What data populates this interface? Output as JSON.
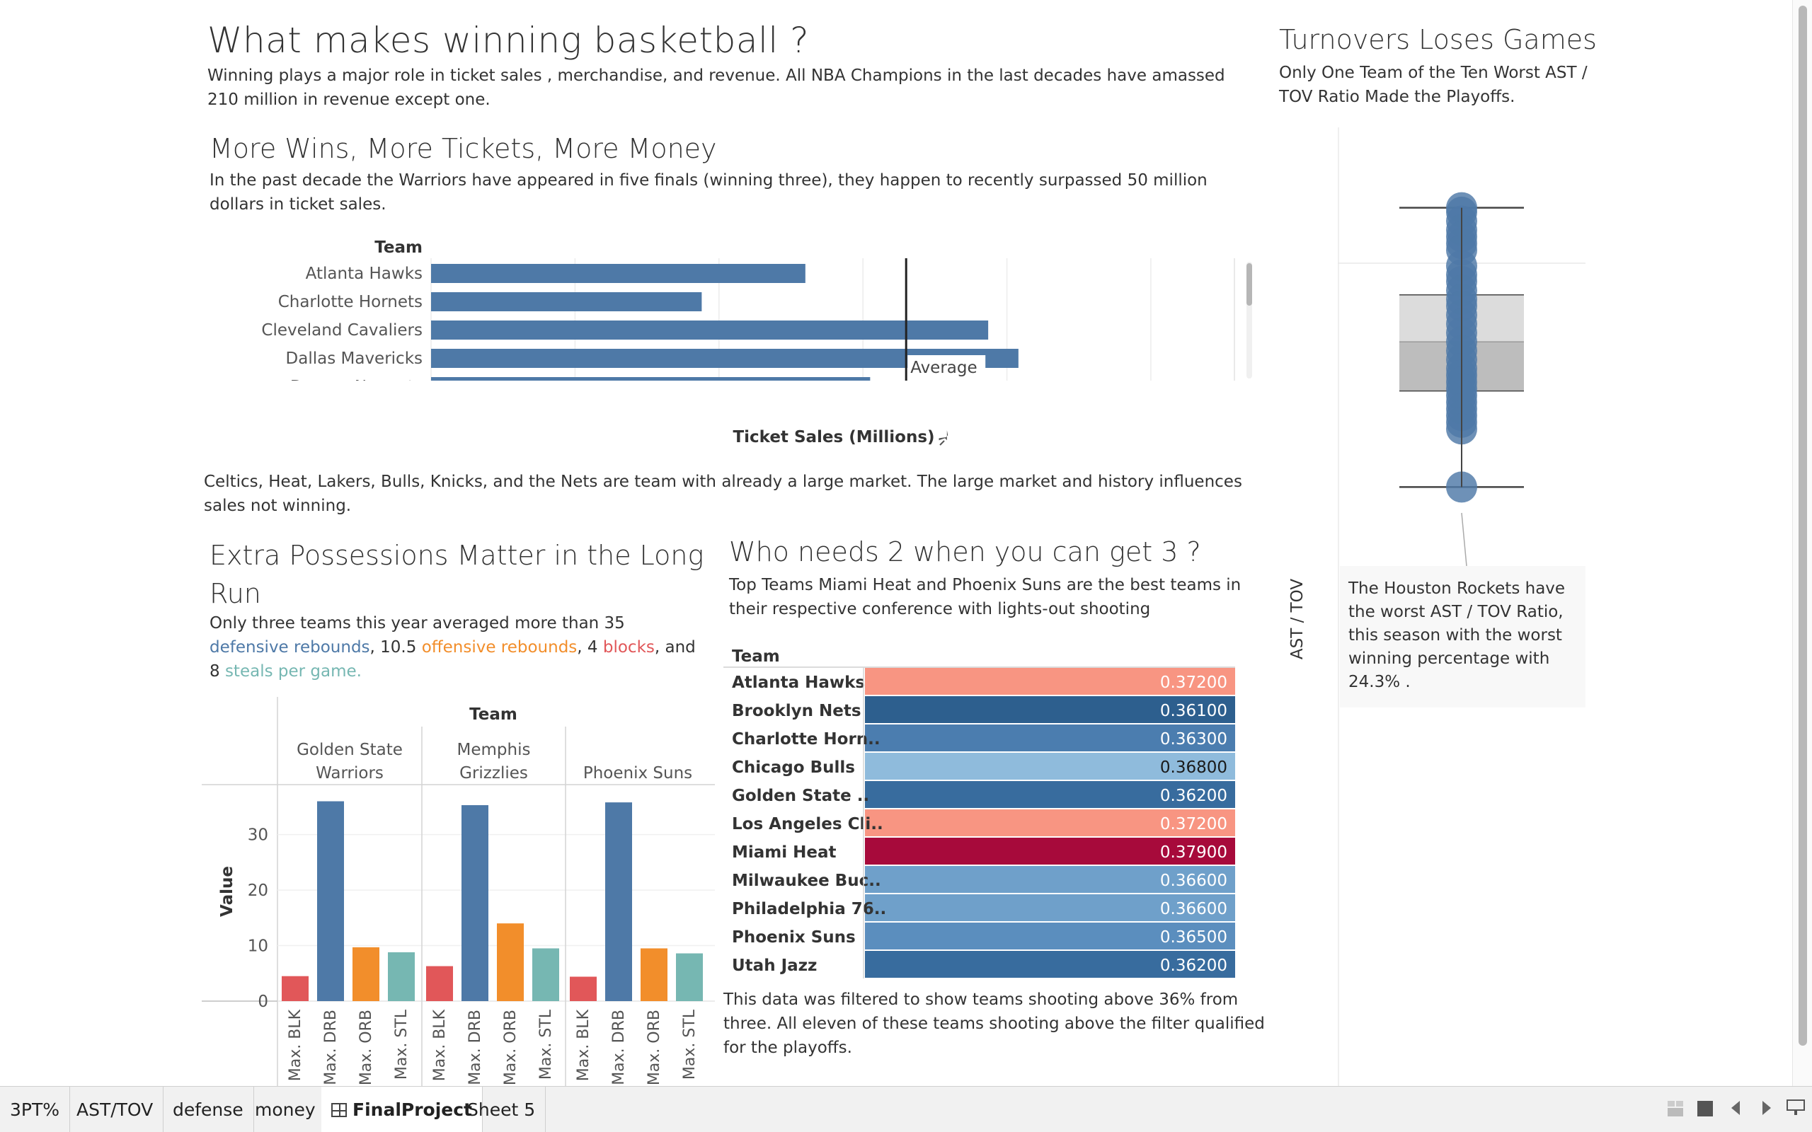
{
  "dashboard": {
    "title": "What makes winning basketball ?",
    "subtitle": "Winning plays a major role in ticket sales , merchandise, and revenue. All NBA Champions in the last decades have amassed 210 million in revenue except one."
  },
  "money_section": {
    "title": "More Wins, More Tickets, More Money",
    "description": "In the past decade the Warriors have appeared in five finals (winning three), they happen to recently surpassed 50 million dollars in ticket sales.",
    "team_header": "Team",
    "axis_title": "Ticket Sales (Millions)",
    "average_label": "Average",
    "footnote": "Celtics, Heat, Lakers, Bulls, Knicks, and the Nets are team with already a large market. The large market and history influences sales not winning."
  },
  "defense_section": {
    "title_line1": "Extra Possessions Matter in the Long",
    "title_line2": "Run",
    "desc_parts": {
      "a": "Only three teams this year averaged more than 35 ",
      "b": "defensive rebounds",
      "c": ", 10.5 ",
      "d": "offensive rebounds",
      "e": ", 4 ",
      "f": "blocks",
      "g": ", and 8 ",
      "h": "steals per game."
    },
    "team_header": "Team",
    "y_axis_title": "Value"
  },
  "threept_section": {
    "title": "Who needs 2 when you can get 3 ?",
    "description": "Top Teams Miami Heat and Phoenix Suns are the best teams in their respective conference with lights-out shooting",
    "team_header": "Team",
    "footnote": "This data was filtered to show teams shooting above 36% from three. All eleven of these teams shooting above the filter qualified for the playoffs."
  },
  "tov_section": {
    "title": "Turnovers Loses Games",
    "description": "Only One Team of the Ten Worst AST / TOV Ratio Made the Playoffs.",
    "y_axis_title": "AST / TOV",
    "annotation": "The Houston Rockets have the worst AST / TOV Ratio, this season with the worst winning percentage with 24.3% ."
  },
  "tabs": [
    {
      "label": "3PT%",
      "active": false
    },
    {
      "label": "AST/TOV",
      "active": false
    },
    {
      "label": "defense",
      "active": false
    },
    {
      "label": "money",
      "active": false
    },
    {
      "label": "FinalProject",
      "active": true
    },
    {
      "label": "Sheet 5",
      "active": false
    }
  ],
  "colors": {
    "bar_blue": "#4e79a7",
    "blk": "#e15759",
    "drb": "#4e79a7",
    "orb": "#f28e2b",
    "stl": "#76b7b2"
  },
  "chart_data": [
    {
      "id": "ticket_sales",
      "type": "bar",
      "orientation": "horizontal",
      "title": "More Wins, More Tickets, More Money",
      "xlabel": "Ticket Sales (Millions)",
      "ylabel": "Team",
      "categories": [
        "Atlanta Hawks",
        "Charlotte Hornets",
        "Cleveland Cavaliers",
        "Dallas Mavericks",
        "Denver Nuggets"
      ],
      "values": [
        26.0,
        18.8,
        38.7,
        40.8,
        30.5
      ],
      "average": 33.0,
      "xlim": [
        0,
        56
      ],
      "grid": true
    },
    {
      "id": "defense_stats",
      "type": "bar",
      "title": "Extra Possessions Matter in the Long Run",
      "ylabel": "Value",
      "measure_labels": [
        "Max. BLK",
        "Max. DRB",
        "Max. ORB",
        "Max. STL"
      ],
      "groups": [
        {
          "name": "Golden State Warriors",
          "line1": "Golden State",
          "line2": "Warriors",
          "values": [
            4.5,
            36.0,
            9.7,
            8.8
          ]
        },
        {
          "name": "Memphis Grizzlies",
          "line1": "Memphis",
          "line2": "Grizzlies",
          "values": [
            6.3,
            35.3,
            14.0,
            9.5
          ]
        },
        {
          "name": "Phoenix Suns",
          "line1": "Phoenix Suns",
          "line2": "",
          "values": [
            4.4,
            35.8,
            9.5,
            8.6
          ]
        }
      ],
      "yticks": [
        0,
        10,
        20,
        30
      ],
      "ylim": [
        0,
        39
      ]
    },
    {
      "id": "three_pt",
      "type": "table",
      "title": "Who needs 2 when you can get 3 ?",
      "header": "Team",
      "rows": [
        {
          "team": "Atlanta Hawks",
          "value": 0.372,
          "label": "0.37200",
          "color": "#f89582",
          "dark_text": false
        },
        {
          "team": "Brooklyn Nets",
          "value": 0.361,
          "label": "0.36100",
          "color": "#2d5f8e",
          "dark_text": false
        },
        {
          "team": "Charlotte Horn..",
          "value": 0.363,
          "label": "0.36300",
          "color": "#4b7daf",
          "dark_text": false
        },
        {
          "team": "Chicago Bulls",
          "value": 0.368,
          "label": "0.36800",
          "color": "#8fbbdc",
          "dark_text": true
        },
        {
          "team": "Golden State ..",
          "value": 0.362,
          "label": "0.36200",
          "color": "#386c9e",
          "dark_text": false
        },
        {
          "team": "Los Angeles Cli..",
          "value": 0.372,
          "label": "0.37200",
          "color": "#f89582",
          "dark_text": false
        },
        {
          "team": "Miami Heat",
          "value": 0.379,
          "label": "0.37900",
          "color": "#a70a3b",
          "dark_text": false
        },
        {
          "team": "Milwaukee Buc..",
          "value": 0.366,
          "label": "0.36600",
          "color": "#6fa0ca",
          "dark_text": false
        },
        {
          "team": "Philadelphia 76..",
          "value": 0.366,
          "label": "0.36600",
          "color": "#6fa0ca",
          "dark_text": false
        },
        {
          "team": "Phoenix Suns",
          "value": 0.365,
          "label": "0.36500",
          "color": "#5b8ebe",
          "dark_text": false
        },
        {
          "team": "Utah Jazz",
          "value": 0.362,
          "label": "0.36200",
          "color": "#386c9e",
          "dark_text": false
        }
      ]
    },
    {
      "id": "ast_tov",
      "type": "scatter",
      "subtype": "box_plot",
      "title": "Turnovers Loses Games",
      "ylabel": "AST / TOV",
      "values": [
        2.3,
        2.28,
        2.24,
        2.2,
        2.17,
        2.14,
        2.11,
        2.04,
        2.0,
        1.97,
        1.93,
        1.89,
        1.86,
        1.82,
        1.78,
        1.74,
        1.7,
        1.66,
        1.62,
        1.58,
        1.55,
        1.52,
        1.49,
        1.46,
        1.43,
        1.4,
        1.37,
        1.34,
        1.31,
        1.05
      ],
      "box": {
        "whisker_low": 1.05,
        "q1": 1.48,
        "median": 1.7,
        "q3": 1.91,
        "whisker_high": 2.3
      },
      "ylim": [
        0.95,
        2.4
      ]
    }
  ]
}
